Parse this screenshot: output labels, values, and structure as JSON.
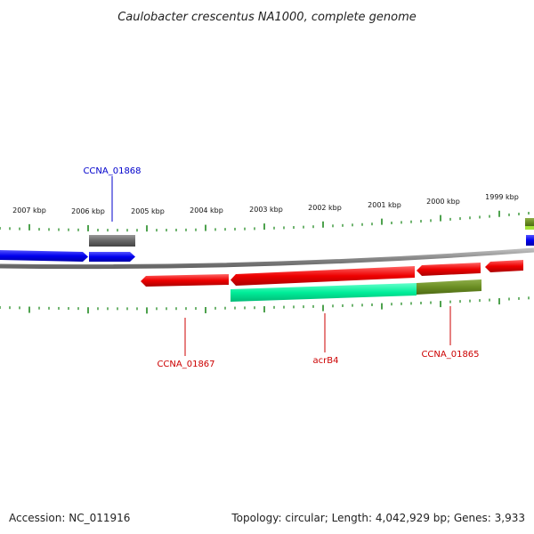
{
  "title": "Caulobacter crescentus NA1000, complete genome",
  "ruler_labels": [
    "2007 kbp",
    "2006 kbp",
    "2005 kbp",
    "2004 kbp",
    "2003 kbp",
    "2002 kbp",
    "2001 kbp",
    "2000 kbp",
    "1999 kbp"
  ],
  "gene_labels": {
    "ccna_01868": "CCNA_01868",
    "ccna_01867": "CCNA_01867",
    "acrb4": "acrB4",
    "ccna_01865": "CCNA_01865"
  },
  "footer": {
    "accession": "Accession: NC_011916",
    "summary": "Topology: circular; Length: 4,042,929 bp; Genes: 3,933"
  },
  "colors": {
    "forward_gene": "#0000ee",
    "reverse_gene": "#ee0000",
    "pseudo_gene": "#6e6e6e",
    "rna_feature": "#00ee99",
    "overlap_feature": "#6b8e23",
    "backbone": "#888888",
    "tick": "#228b22",
    "label_blue": "#0000cc",
    "label_red": "#cc0000"
  }
}
